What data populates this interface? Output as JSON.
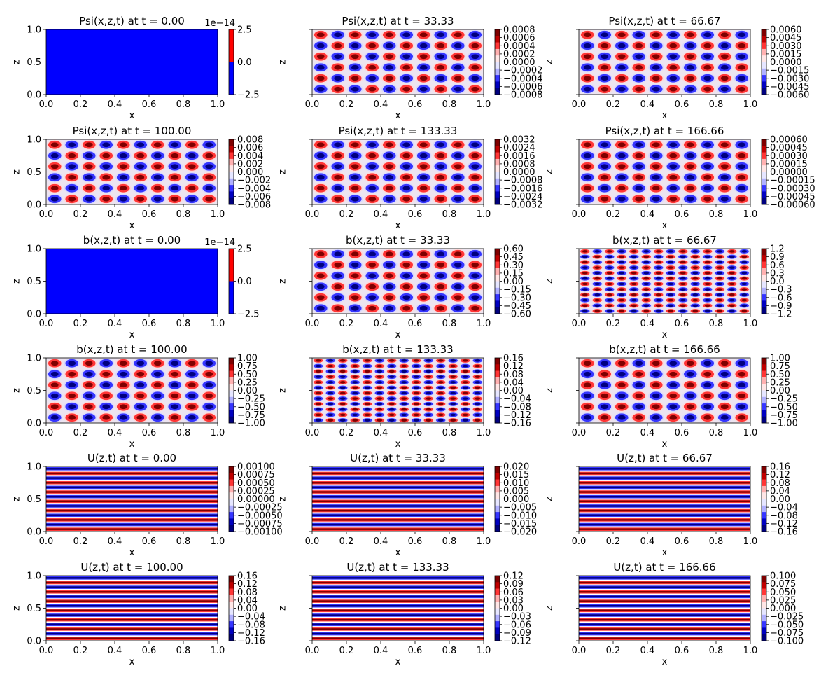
{
  "chart_data": {
    "type": "heatmap",
    "layout": "6 rows x 3 columns of filled-contour panels, each with its own colorbar",
    "colormap": "seismic (blue-white-red)",
    "colors": {
      "negative": "#00007f",
      "mid_negative": "#3535ff",
      "light": "#d8d8ff",
      "light_pos": "#ffd8d8",
      "mid_positive": "#ff3535",
      "positive": "#7f0000"
    },
    "panels": [
      {
        "title": "Psi(x,z,t) at t = 0.00",
        "xlabel": "x",
        "ylabel": "z",
        "xlim": [
          0,
          1
        ],
        "ylim": [
          0,
          1
        ],
        "xticks": [
          "0.0",
          "0.2",
          "0.4",
          "0.6",
          "0.8",
          "1.0"
        ],
        "yticks": [
          "0.0",
          "0.5",
          "1.0"
        ],
        "pattern": "uniform",
        "colorbar": {
          "ticks": [
            "2.5",
            "0.0",
            "−2.5"
          ],
          "offset": "1e−14",
          "range": [
            -2.5e-14,
            2.5e-14
          ]
        }
      },
      {
        "title": "Psi(x,z,t) at t = 33.33",
        "xlabel": "x",
        "ylabel": "z",
        "xlim": [
          0,
          1
        ],
        "ylim": [
          0,
          1
        ],
        "xticks": [
          "0.0",
          "0.2",
          "0.4",
          "0.6",
          "0.8",
          "1.0"
        ],
        "yticks": [],
        "pattern": "cells",
        "nx": 10,
        "nz": 6,
        "colorbar": {
          "ticks": [
            "0.0008",
            "0.0006",
            "0.0004",
            "0.0002",
            "0.0000",
            "−0.0002",
            "−0.0004",
            "−0.0006",
            "−0.0008"
          ],
          "range": [
            -0.0008,
            0.0008
          ]
        }
      },
      {
        "title": "Psi(x,z,t) at t = 66.67",
        "xlabel": "x",
        "ylabel": "z",
        "xlim": [
          0,
          1
        ],
        "ylim": [
          0,
          1
        ],
        "xticks": [
          "0.0",
          "0.2",
          "0.4",
          "0.6",
          "0.8",
          "1.0"
        ],
        "yticks": [],
        "pattern": "cells",
        "nx": 10,
        "nz": 6,
        "colorbar": {
          "ticks": [
            "0.0060",
            "0.0045",
            "0.0030",
            "0.0015",
            "0.0000",
            "−0.0015",
            "−0.0030",
            "−0.0045",
            "−0.0060"
          ],
          "range": [
            -0.006,
            0.006
          ]
        }
      },
      {
        "title": "Psi(x,z,t) at t = 100.00",
        "xlabel": "x",
        "ylabel": "z",
        "xlim": [
          0,
          1
        ],
        "ylim": [
          0,
          1
        ],
        "xticks": [
          "0.0",
          "0.2",
          "0.4",
          "0.6",
          "0.8",
          "1.0"
        ],
        "yticks": [
          "0.0",
          "0.5",
          "1.0"
        ],
        "pattern": "cells",
        "nx": 10,
        "nz": 6,
        "colorbar": {
          "ticks": [
            "0.008",
            "0.006",
            "0.004",
            "0.002",
            "0.000",
            "−0.002",
            "−0.004",
            "−0.006",
            "−0.008"
          ],
          "range": [
            -0.008,
            0.008
          ]
        }
      },
      {
        "title": "Psi(x,z,t) at t = 133.33",
        "xlabel": "x",
        "ylabel": "z",
        "xlim": [
          0,
          1
        ],
        "ylim": [
          0,
          1
        ],
        "xticks": [
          "0.0",
          "0.2",
          "0.4",
          "0.6",
          "0.8",
          "1.0"
        ],
        "yticks": [],
        "pattern": "cells",
        "nx": 10,
        "nz": 6,
        "colorbar": {
          "ticks": [
            "0.0032",
            "0.0024",
            "0.0016",
            "0.0008",
            "0.0000",
            "−0.0008",
            "−0.0016",
            "−0.0024",
            "−0.0032"
          ],
          "range": [
            -0.0032,
            0.0032
          ]
        }
      },
      {
        "title": "Psi(x,z,t) at t = 166.66",
        "xlabel": "x",
        "ylabel": "z",
        "xlim": [
          0,
          1
        ],
        "ylim": [
          0,
          1
        ],
        "xticks": [
          "0.0",
          "0.2",
          "0.4",
          "0.6",
          "0.8",
          "1.0"
        ],
        "yticks": [],
        "pattern": "cells",
        "nx": 10,
        "nz": 6,
        "colorbar": {
          "ticks": [
            "0.00060",
            "0.00045",
            "0.00030",
            "0.00015",
            "0.00000",
            "−0.00015",
            "−0.00030",
            "−0.00045",
            "−0.00060"
          ],
          "range": [
            -0.0006,
            0.0006
          ]
        }
      },
      {
        "title": "b(x,z,t) at t = 0.00",
        "xlabel": "x",
        "ylabel": "z",
        "xlim": [
          0,
          1
        ],
        "ylim": [
          0,
          1
        ],
        "xticks": [
          "0.0",
          "0.2",
          "0.4",
          "0.6",
          "0.8",
          "1.0"
        ],
        "yticks": [
          "0.0",
          "0.5",
          "1.0"
        ],
        "pattern": "uniform",
        "colorbar": {
          "ticks": [
            "2.5",
            "0.0",
            "−2.5"
          ],
          "offset": "1e−14",
          "range": [
            -2.5e-14,
            2.5e-14
          ]
        }
      },
      {
        "title": "b(x,z,t) at t = 33.33",
        "xlabel": "x",
        "ylabel": "z",
        "xlim": [
          0,
          1
        ],
        "ylim": [
          0,
          1
        ],
        "xticks": [
          "0.0",
          "0.2",
          "0.4",
          "0.6",
          "0.8",
          "1.0"
        ],
        "yticks": [],
        "pattern": "cells",
        "nx": 10,
        "nz": 6,
        "colorbar": {
          "ticks": [
            "0.60",
            "0.45",
            "0.30",
            "0.15",
            "0.00",
            "−0.15",
            "−0.30",
            "−0.45",
            "−0.60"
          ],
          "range": [
            -0.6,
            0.6
          ]
        }
      },
      {
        "title": "b(x,z,t) at t = 66.67",
        "xlabel": "x",
        "ylabel": "z",
        "xlim": [
          0,
          1
        ],
        "ylim": [
          0,
          1
        ],
        "xticks": [
          "0.0",
          "0.2",
          "0.4",
          "0.6",
          "0.8",
          "1.0"
        ],
        "yticks": [],
        "pattern": "cells",
        "nx": 14,
        "nz": 12,
        "colorbar": {
          "ticks": [
            "1.2",
            "0.9",
            "0.6",
            "0.3",
            "0.0",
            "−0.3",
            "−0.6",
            "−0.9",
            "−1.2"
          ],
          "range": [
            -1.2,
            1.2
          ]
        }
      },
      {
        "title": "b(x,z,t) at t = 100.00",
        "xlabel": "x",
        "ylabel": "z",
        "xlim": [
          0,
          1
        ],
        "ylim": [
          0,
          1
        ],
        "xticks": [
          "0.0",
          "0.2",
          "0.4",
          "0.6",
          "0.8",
          "1.0"
        ],
        "yticks": [
          "0.0",
          "0.5",
          "1.0"
        ],
        "pattern": "cells",
        "nx": 10,
        "nz": 6,
        "colorbar": {
          "ticks": [
            "1.00",
            "0.75",
            "0.50",
            "0.25",
            "0.00",
            "−0.25",
            "−0.50",
            "−0.75",
            "−1.00"
          ],
          "range": [
            -1,
            1
          ]
        }
      },
      {
        "title": "b(x,z,t) at t = 133.33",
        "xlabel": "x",
        "ylabel": "z",
        "xlim": [
          0,
          1
        ],
        "ylim": [
          0,
          1
        ],
        "xticks": [
          "0.0",
          "0.2",
          "0.4",
          "0.6",
          "0.8",
          "1.0"
        ],
        "yticks": [],
        "pattern": "cells",
        "nx": 14,
        "nz": 12,
        "colorbar": {
          "ticks": [
            "0.16",
            "0.12",
            "0.08",
            "0.04",
            "0.00",
            "−0.04",
            "−0.08",
            "−0.12",
            "−0.16"
          ],
          "range": [
            -0.16,
            0.16
          ]
        }
      },
      {
        "title": "b(x,z,t) at t = 166.66",
        "xlabel": "x",
        "ylabel": "z",
        "xlim": [
          0,
          1
        ],
        "ylim": [
          0,
          1
        ],
        "xticks": [
          "0.0",
          "0.2",
          "0.4",
          "0.6",
          "0.8",
          "1.0"
        ],
        "yticks": [],
        "pattern": "cells",
        "nx": 10,
        "nz": 6,
        "colorbar": {
          "ticks": [
            "1.00",
            "0.75",
            "0.50",
            "0.25",
            "0.00",
            "−0.25",
            "−0.50",
            "−0.75",
            "−1.00"
          ],
          "range": [
            -1,
            1
          ]
        }
      },
      {
        "title": "U(z,t) at t = 0.00",
        "xlabel": "x",
        "ylabel": "z",
        "xlim": [
          0,
          1
        ],
        "ylim": [
          0,
          1
        ],
        "xticks": [
          "0.0",
          "0.2",
          "0.4",
          "0.6",
          "0.8",
          "1.0"
        ],
        "yticks": [
          "0.0",
          "0.5",
          "1.0"
        ],
        "pattern": "stripes",
        "nz": 14,
        "colorbar": {
          "ticks": [
            "0.00100",
            "0.00075",
            "0.00050",
            "0.00025",
            "0.00000",
            "−0.00025",
            "−0.00050",
            "−0.00075",
            "−0.00100"
          ],
          "range": [
            -0.001,
            0.001
          ]
        }
      },
      {
        "title": "U(z,t) at t = 33.33",
        "xlabel": "x",
        "ylabel": "z",
        "xlim": [
          0,
          1
        ],
        "ylim": [
          0,
          1
        ],
        "xticks": [
          "0.0",
          "0.2",
          "0.4",
          "0.6",
          "0.8",
          "1.0"
        ],
        "yticks": [],
        "pattern": "stripes",
        "nz": 14,
        "colorbar": {
          "ticks": [
            "0.020",
            "0.015",
            "0.010",
            "0.005",
            "0.000",
            "−0.005",
            "−0.010",
            "−0.015",
            "−0.020"
          ],
          "range": [
            -0.02,
            0.02
          ]
        }
      },
      {
        "title": "U(z,t) at t = 66.67",
        "xlabel": "x",
        "ylabel": "z",
        "xlim": [
          0,
          1
        ],
        "ylim": [
          0,
          1
        ],
        "xticks": [
          "0.0",
          "0.2",
          "0.4",
          "0.6",
          "0.8",
          "1.0"
        ],
        "yticks": [],
        "pattern": "stripes",
        "nz": 14,
        "colorbar": {
          "ticks": [
            "0.16",
            "0.12",
            "0.08",
            "0.04",
            "0.00",
            "−0.04",
            "−0.08",
            "−0.12",
            "−0.16"
          ],
          "range": [
            -0.16,
            0.16
          ]
        }
      },
      {
        "title": "U(z,t) at t = 100.00",
        "xlabel": "x",
        "ylabel": "z",
        "xlim": [
          0,
          1
        ],
        "ylim": [
          0,
          1
        ],
        "xticks": [
          "0.0",
          "0.2",
          "0.4",
          "0.6",
          "0.8",
          "1.0"
        ],
        "yticks": [
          "0.0",
          "0.5",
          "1.0"
        ],
        "pattern": "stripes",
        "nz": 14,
        "colorbar": {
          "ticks": [
            "0.16",
            "0.12",
            "0.08",
            "0.04",
            "0.00",
            "−0.04",
            "−0.08",
            "−0.12",
            "−0.16"
          ],
          "range": [
            -0.16,
            0.16
          ]
        }
      },
      {
        "title": "U(z,t) at t = 133.33",
        "xlabel": "x",
        "ylabel": "z",
        "xlim": [
          0,
          1
        ],
        "ylim": [
          0,
          1
        ],
        "xticks": [
          "0.0",
          "0.2",
          "0.4",
          "0.6",
          "0.8",
          "1.0"
        ],
        "yticks": [],
        "pattern": "stripes",
        "nz": 14,
        "colorbar": {
          "ticks": [
            "0.12",
            "0.09",
            "0.06",
            "0.03",
            "0.00",
            "−0.03",
            "−0.06",
            "−0.09",
            "−0.12"
          ],
          "range": [
            -0.12,
            0.12
          ]
        }
      },
      {
        "title": "U(z,t) at t = 166.66",
        "xlabel": "x",
        "ylabel": "z",
        "xlim": [
          0,
          1
        ],
        "ylim": [
          0,
          1
        ],
        "xticks": [
          "0.0",
          "0.2",
          "0.4",
          "0.6",
          "0.8",
          "1.0"
        ],
        "yticks": [],
        "pattern": "stripes",
        "nz": 14,
        "colorbar": {
          "ticks": [
            "0.100",
            "0.075",
            "0.050",
            "0.025",
            "0.000",
            "−0.025",
            "−0.050",
            "−0.075",
            "−0.100"
          ],
          "range": [
            -0.1,
            0.1
          ]
        }
      }
    ]
  }
}
